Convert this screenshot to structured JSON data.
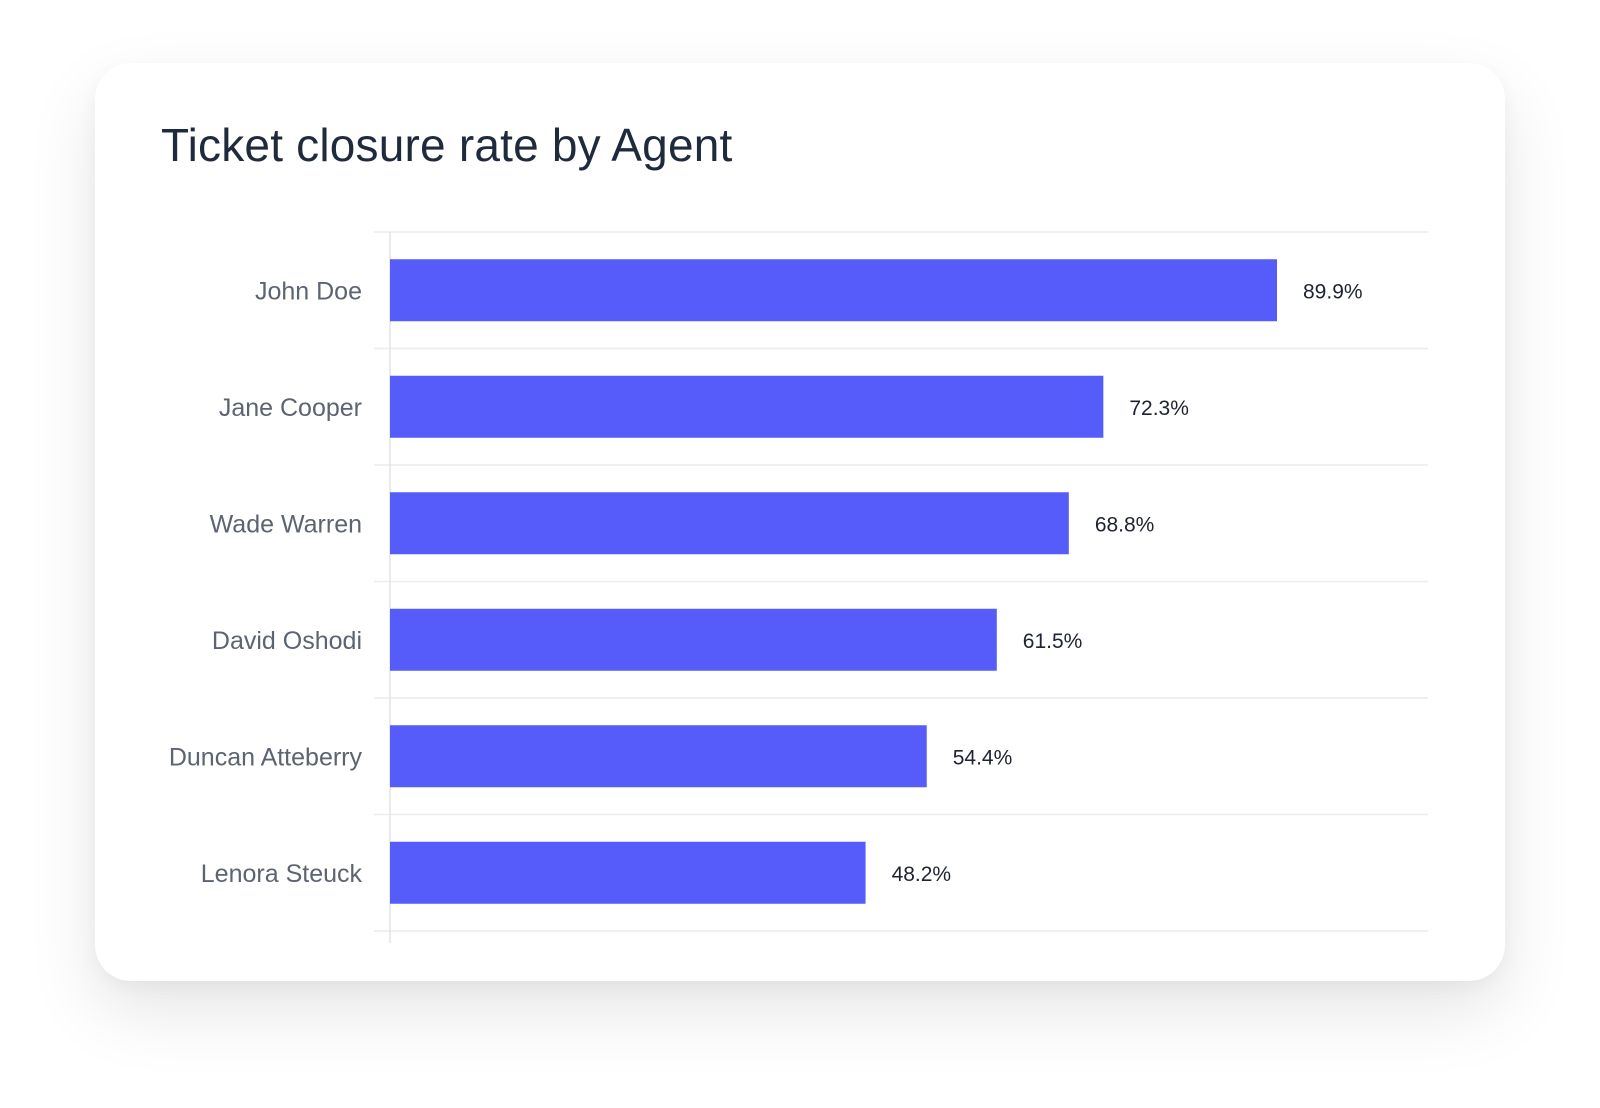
{
  "chart_data": {
    "type": "bar",
    "orientation": "horizontal",
    "title": "Ticket closure rate by Agent",
    "categories": [
      "John Doe",
      "Jane Cooper",
      "Wade Warren",
      "David Oshodi",
      "Duncan Atteberry",
      "Lenora Steuck"
    ],
    "values": [
      89.9,
      72.3,
      68.8,
      61.5,
      54.4,
      48.2
    ],
    "value_labels": [
      "89.9%",
      "72.3%",
      "68.8%",
      "61.5%",
      "54.4%",
      "48.2%"
    ],
    "unit": "%",
    "xlim": [
      0,
      100
    ],
    "grid": "horizontal separators between rows",
    "legend": "none",
    "colors": {
      "bar": "#555cfa",
      "category_label": "#5c6472",
      "value_label": "#1e2330",
      "title": "#1f2b3d",
      "grid": "#ececef"
    }
  }
}
